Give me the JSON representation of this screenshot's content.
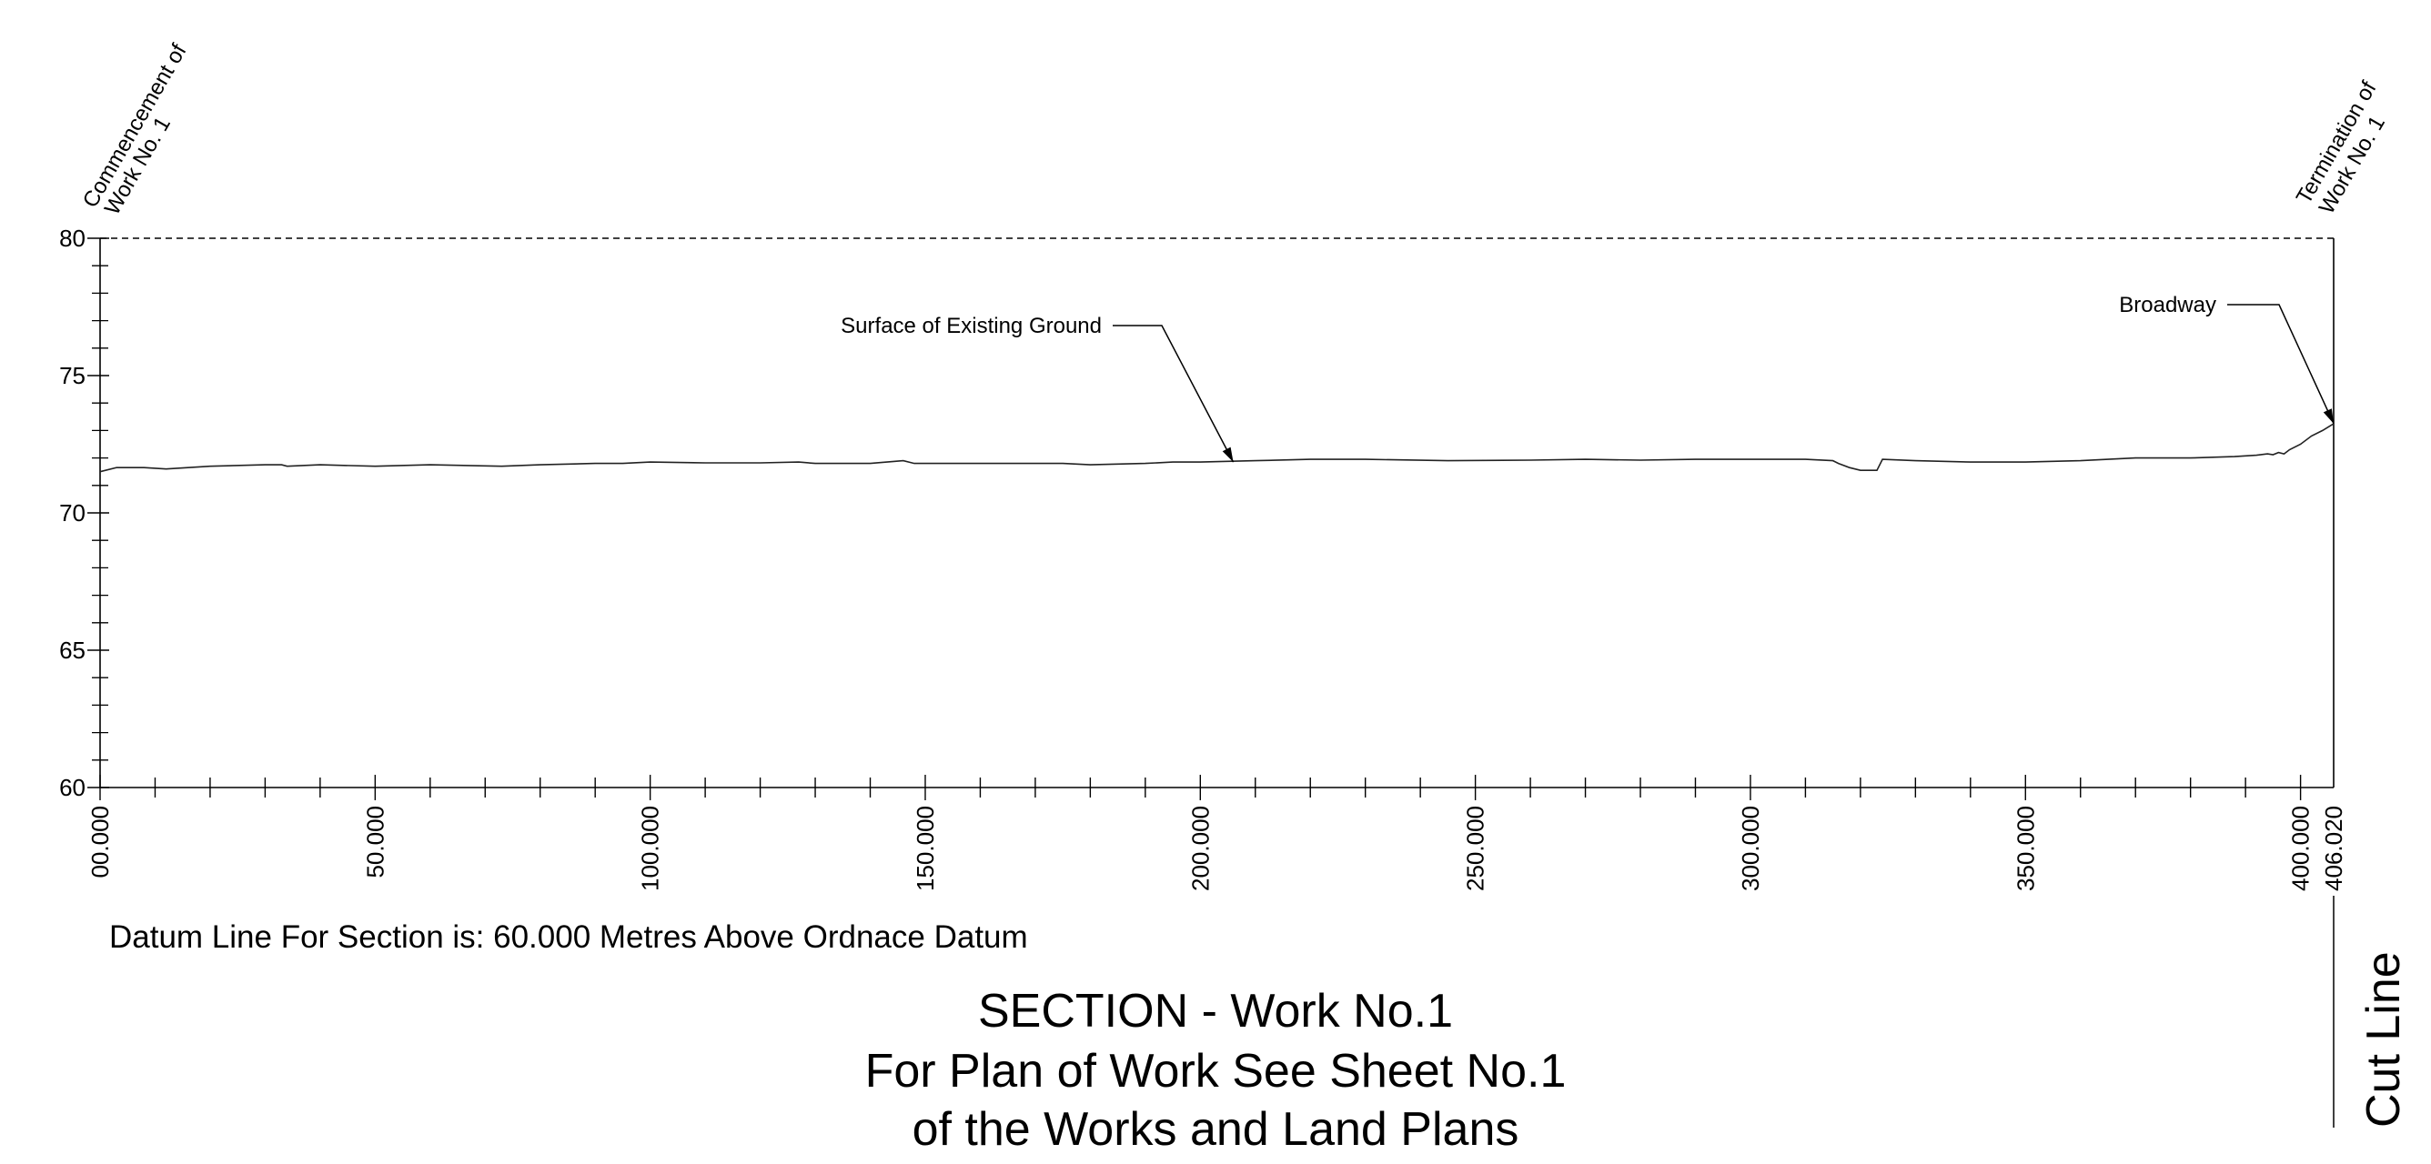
{
  "chart_data": {
    "type": "line",
    "xlim": [
      0,
      406.02
    ],
    "ylim": [
      60,
      80
    ],
    "y_ticks": [
      "60",
      "65",
      "70",
      "75",
      "80"
    ],
    "x_ticks": [
      "00.000",
      "50.000",
      "100.000",
      "150.000",
      "200.000",
      "250.000",
      "300.000",
      "350.000",
      "400.000"
    ],
    "x_tick_values": [
      0,
      50,
      100,
      150,
      200,
      250,
      300,
      350,
      400
    ],
    "x_end_label": "406.020",
    "x_end_value": 406.02,
    "top_line_level": 80,
    "series": [
      {
        "x": [
          0,
          3,
          8,
          12,
          20,
          30,
          33,
          34,
          40,
          50,
          60,
          73,
          80,
          90,
          95,
          100,
          110,
          120,
          127,
          130,
          140,
          146,
          148,
          150,
          160,
          175,
          180,
          190,
          195,
          200,
          210,
          220,
          230,
          245,
          260,
          270,
          280,
          290,
          300,
          310,
          315,
          316,
          318,
          320,
          323,
          324,
          330,
          340,
          350,
          360,
          370,
          380,
          388,
          392,
          394,
          395,
          396,
          397,
          398,
          400,
          402,
          404,
          406.02
        ],
        "y": [
          71.5,
          71.65,
          71.65,
          71.6,
          71.7,
          71.75,
          71.75,
          71.7,
          71.75,
          71.7,
          71.75,
          71.7,
          71.75,
          71.8,
          71.8,
          71.85,
          71.82,
          71.82,
          71.85,
          71.8,
          71.8,
          71.9,
          71.8,
          71.8,
          71.8,
          71.8,
          71.75,
          71.8,
          71.85,
          71.85,
          71.9,
          71.95,
          71.95,
          71.9,
          71.92,
          71.95,
          71.92,
          71.95,
          71.95,
          71.95,
          71.9,
          71.8,
          71.65,
          71.55,
          71.55,
          71.95,
          71.9,
          71.85,
          71.85,
          71.9,
          72.0,
          72.0,
          72.05,
          72.1,
          72.15,
          72.12,
          72.2,
          72.15,
          72.3,
          72.5,
          72.8,
          73.0,
          73.25
        ]
      }
    ],
    "annotations": [
      {
        "text": "Surface of Existing Ground",
        "target_x": 206,
        "target_y": 71.85
      },
      {
        "text": "Broadway",
        "target_x": 406.02,
        "target_y": 73.25
      }
    ],
    "markers": {
      "start": {
        "line1": "Commencement of",
        "line2": "Work No. 1"
      },
      "end": {
        "line1": "Termination of",
        "line2": "Work No. 1"
      }
    },
    "side_label": "Cut Line"
  },
  "datum_text": "Datum Line For Section is: 60.000 Metres Above Ordnace Datum",
  "title": {
    "line1": "SECTION - Work No.1",
    "line2": "For Plan of Work See Sheet No.1",
    "line3": "of the Works and Land Plans"
  }
}
